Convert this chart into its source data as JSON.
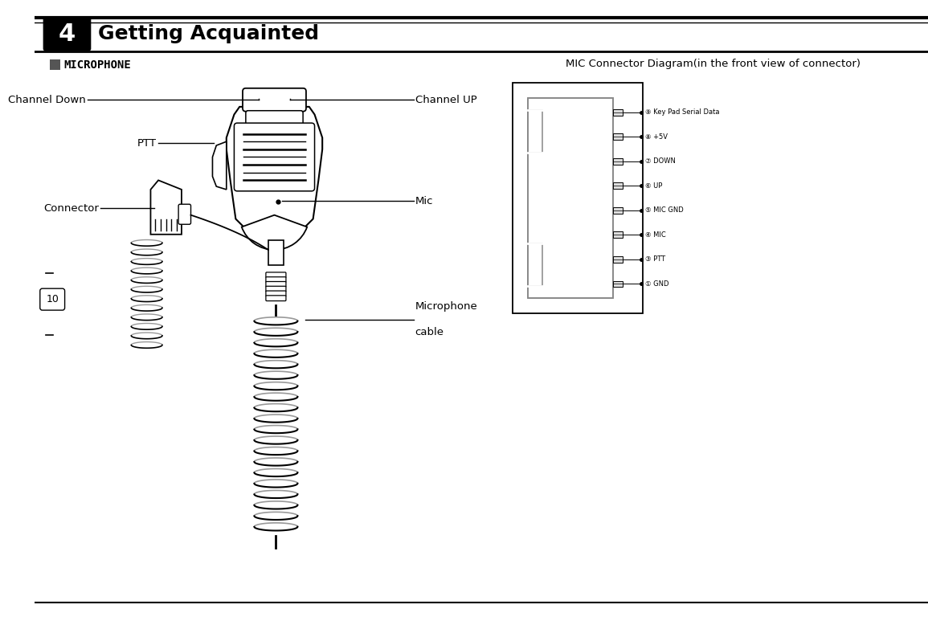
{
  "title_chapter": "4",
  "title_text": "Getting Acquainted",
  "section_label": "MICROPHONE",
  "mic_diagram_title": "MIC Connector Diagram(in the front view of connector)",
  "pin_labels": [
    "⑨ Key Pad Serial Data",
    "⑧ +5V",
    "⑦ DOWN",
    "⑥ UP",
    "⑤ MIC GND",
    "④ MIC",
    "③ PTT",
    "① GND"
  ],
  "page_number": "10",
  "bg_color": "#ffffff",
  "line_color": "#000000",
  "header_bg": "#000000",
  "header_text_color": "#ffffff",
  "section_box_color": "#555555",
  "gray_color": "#999999"
}
